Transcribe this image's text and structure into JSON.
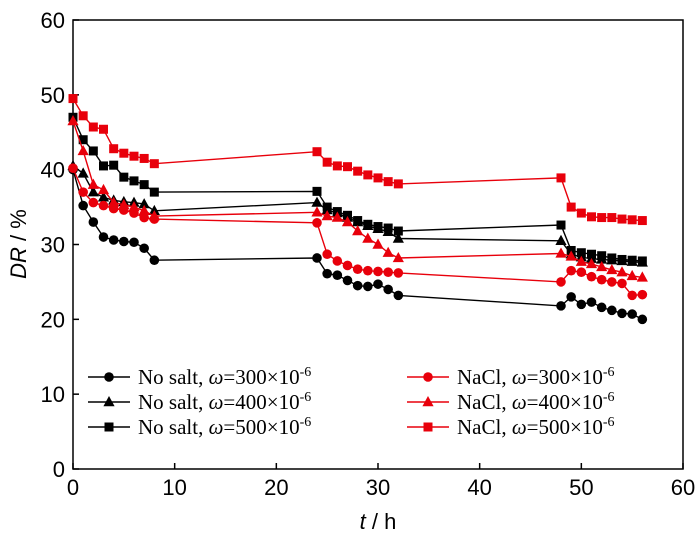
{
  "chart_data": {
    "type": "line",
    "title": "",
    "xlabel": {
      "var": "t",
      "unit": "h"
    },
    "ylabel": {
      "var": "DR",
      "unit": "%"
    },
    "xlim": [
      0,
      60
    ],
    "ylim": [
      0,
      60
    ],
    "xticks": [
      0,
      10,
      20,
      30,
      40,
      50,
      60
    ],
    "yticks": [
      0,
      10,
      20,
      30,
      40,
      50,
      60
    ],
    "grid": false,
    "legend_position": "bottom",
    "series": [
      {
        "id": "noSalt300",
        "label": "No salt, ω=300×10⁻⁶",
        "prefix": "No salt, ",
        "conc": "300",
        "exp": "-6",
        "color": "#000000",
        "marker": "circle",
        "x": [
          0,
          1,
          2,
          3,
          4,
          5,
          6,
          7,
          8,
          24,
          25,
          26,
          27,
          28,
          29,
          30,
          31,
          32,
          48,
          49,
          50,
          51,
          52,
          53,
          54,
          55,
          56
        ],
        "y": [
          40.0,
          35.2,
          33.0,
          31.0,
          30.6,
          30.4,
          30.3,
          29.5,
          27.9,
          28.2,
          26.1,
          25.9,
          25.2,
          24.5,
          24.4,
          24.7,
          24.0,
          23.2,
          21.8,
          23.0,
          22.0,
          22.3,
          21.6,
          21.2,
          20.8,
          20.7,
          20.0
        ]
      },
      {
        "id": "noSalt400",
        "label": "No salt, ω=400×10⁻⁶",
        "prefix": "No salt, ",
        "conc": "400",
        "exp": "-6",
        "color": "#000000",
        "marker": "triangle",
        "x": [
          0,
          1,
          2,
          3,
          4,
          5,
          6,
          7,
          8,
          24,
          25,
          26,
          27,
          28,
          29,
          30,
          31,
          32,
          48,
          49,
          50,
          51,
          52,
          53,
          54,
          55,
          56
        ],
        "y": [
          40.5,
          39.5,
          37.0,
          36.3,
          35.9,
          35.7,
          35.6,
          35.4,
          34.5,
          35.6,
          34.6,
          34.2,
          33.6,
          33.0,
          32.5,
          32.1,
          31.7,
          30.8,
          30.5,
          28.7,
          28.3,
          28.1,
          28.0,
          27.9,
          27.8,
          27.7,
          27.6
        ]
      },
      {
        "id": "noSalt500",
        "label": "No salt, ω=500×10⁻⁶",
        "prefix": "No salt, ",
        "conc": "500",
        "exp": "-6",
        "color": "#000000",
        "marker": "square",
        "x": [
          0,
          1,
          2,
          3,
          4,
          5,
          6,
          7,
          8,
          24,
          25,
          26,
          27,
          28,
          29,
          30,
          31,
          32,
          48,
          49,
          50,
          51,
          52,
          53,
          54,
          55,
          56
        ],
        "y": [
          47.0,
          44.0,
          42.5,
          40.5,
          40.6,
          39.0,
          38.5,
          38.0,
          37.0,
          37.1,
          35.0,
          34.4,
          33.9,
          33.2,
          32.7,
          32.4,
          32.2,
          31.8,
          32.6,
          29.2,
          28.9,
          28.7,
          28.5,
          28.2,
          28.0,
          27.9,
          27.8
        ]
      },
      {
        "id": "nacl300",
        "label": "NaCl, ω=300×10⁻⁶",
        "prefix": "NaCl, ",
        "conc": "300",
        "exp": "-6",
        "color": "#e8000b",
        "marker": "circle",
        "x": [
          0,
          1,
          2,
          3,
          4,
          5,
          6,
          7,
          8,
          24,
          25,
          26,
          27,
          28,
          29,
          30,
          31,
          32,
          48,
          49,
          50,
          51,
          52,
          53,
          54,
          55,
          56
        ],
        "y": [
          40.2,
          37.0,
          35.6,
          35.2,
          34.8,
          34.6,
          34.2,
          33.6,
          33.4,
          32.9,
          28.7,
          27.8,
          27.2,
          26.7,
          26.5,
          26.4,
          26.3,
          26.2,
          25.0,
          26.5,
          26.3,
          25.7,
          25.3,
          25.0,
          24.8,
          23.2,
          23.3
        ]
      },
      {
        "id": "nacl400",
        "label": "NaCl, ω=400×10⁻⁶",
        "prefix": "NaCl, ",
        "conc": "400",
        "exp": "-6",
        "color": "#e8000b",
        "marker": "triangle",
        "x": [
          0,
          1,
          2,
          3,
          4,
          5,
          6,
          7,
          8,
          24,
          25,
          26,
          27,
          28,
          29,
          30,
          31,
          32,
          48,
          49,
          50,
          51,
          52,
          53,
          54,
          55,
          56
        ],
        "y": [
          46.5,
          42.5,
          38.0,
          37.3,
          35.6,
          35.3,
          35.0,
          34.5,
          33.8,
          34.3,
          33.8,
          33.6,
          33.0,
          31.8,
          30.8,
          30.0,
          28.9,
          28.2,
          28.8,
          28.4,
          27.7,
          27.4,
          27.0,
          26.6,
          26.3,
          25.8,
          25.6
        ]
      },
      {
        "id": "nacl500",
        "label": "NaCl, ω=500×10⁻⁶",
        "prefix": "NaCl, ",
        "conc": "500",
        "exp": "-6",
        "color": "#e8000b",
        "marker": "square",
        "x": [
          0,
          1,
          2,
          3,
          4,
          5,
          6,
          7,
          8,
          24,
          25,
          26,
          27,
          28,
          29,
          30,
          31,
          32,
          48,
          49,
          50,
          51,
          52,
          53,
          54,
          55,
          56
        ],
        "y": [
          49.5,
          47.2,
          45.7,
          45.4,
          42.8,
          42.2,
          41.8,
          41.5,
          40.8,
          42.4,
          41.0,
          40.5,
          40.4,
          39.8,
          39.3,
          38.9,
          38.4,
          38.1,
          38.9,
          35.0,
          34.2,
          33.7,
          33.6,
          33.6,
          33.4,
          33.3,
          33.2
        ]
      }
    ]
  }
}
